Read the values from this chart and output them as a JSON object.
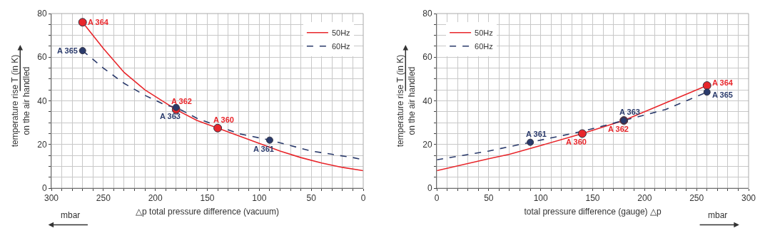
{
  "chart_data": [
    {
      "type": "line",
      "xlabel": "△p total pressure difference (vacuum)",
      "ylabel": "temperature rise T (in K)\non the air handled",
      "xlim": [
        300,
        0
      ],
      "xticks": [
        300,
        {
          "value": 290,
          "label": null
        },
        {
          "value": 280,
          "label": null
        },
        {
          "value": 270,
          "label": null
        },
        {
          "value": 260,
          "label": null
        },
        250,
        {
          "value": 240,
          "label": null
        },
        {
          "value": 230,
          "label": null
        },
        {
          "value": 220,
          "label": null
        },
        {
          "value": 210,
          "label": null
        },
        200,
        {
          "value": 190,
          "label": null
        },
        {
          "value": 180,
          "label": null
        },
        {
          "value": 170,
          "label": null
        },
        {
          "value": 160,
          "label": null
        },
        150,
        {
          "value": 140,
          "label": null
        },
        {
          "value": 130,
          "label": null
        },
        {
          "value": 120,
          "label": null
        },
        {
          "value": 110,
          "label": null
        },
        100,
        {
          "value": 90,
          "label": null
        },
        {
          "value": 80,
          "label": null
        },
        {
          "value": 70,
          "label": null
        },
        {
          "value": 60,
          "label": null
        },
        50,
        {
          "value": 40,
          "label": null
        },
        {
          "value": 30,
          "label": null
        },
        {
          "value": 20,
          "label": null
        },
        {
          "value": 10,
          "label": null
        },
        0
      ],
      "ylim": [
        0,
        80
      ],
      "yticks": [
        0,
        {
          "value": 5,
          "label": null
        },
        {
          "value": 10,
          "label": null
        },
        {
          "value": 15,
          "label": null
        },
        20,
        {
          "value": 25,
          "label": null
        },
        {
          "value": 30,
          "label": null
        },
        {
          "value": 35,
          "label": null
        },
        40,
        {
          "value": 45,
          "label": null
        },
        {
          "value": 50,
          "label": null
        },
        {
          "value": 55,
          "label": null
        },
        60,
        {
          "value": 65,
          "label": null
        },
        {
          "value": 70,
          "label": null
        },
        {
          "value": 75,
          "label": null
        },
        80
      ],
      "grid": true,
      "legend": "top right",
      "series": [
        {
          "name": "50Hz",
          "color": "#e8262b",
          "line_style": "solid",
          "marker": "none",
          "x": [
            270,
            250,
            230,
            210,
            190,
            180,
            160,
            140,
            120,
            100,
            80,
            60,
            40,
            20,
            0
          ],
          "values": [
            76,
            64,
            53,
            45,
            39,
            36,
            31,
            27.5,
            24,
            20.5,
            17,
            14,
            11.5,
            9.5,
            8
          ]
        },
        {
          "name": "60Hz",
          "color": "#2a3a6b",
          "line_style": "dashed",
          "marker": "none",
          "x": [
            270,
            250,
            230,
            210,
            190,
            180,
            160,
            140,
            120,
            90,
            70,
            50,
            30,
            10,
            0
          ],
          "values": [
            63,
            55,
            48,
            42.5,
            38,
            37,
            32,
            28.5,
            25,
            22,
            19.5,
            17,
            15.5,
            14,
            13
          ]
        },
        {
          "type": "scatter",
          "color": "#e8262b",
          "marker": "circle",
          "x": [
            270,
            180,
            140
          ],
          "values": [
            76,
            36,
            27.5
          ]
        },
        {
          "type": "scatter",
          "color": "#2a3a6b",
          "marker": "circle",
          "x": [
            270,
            180,
            90
          ],
          "values": [
            63,
            37,
            22
          ]
        }
      ],
      "annotations": [
        {
          "text": "A 364",
          "x": 270,
          "y": 76
        },
        {
          "text": "A 362",
          "x": 180,
          "y": 36
        },
        {
          "text": "A 360",
          "x": 140,
          "y": 27.5
        },
        {
          "text": "A 365",
          "x": 270,
          "y": 63
        },
        {
          "text": "A 363",
          "x": 180,
          "y": 37
        },
        {
          "text": "A 361",
          "x": 90,
          "y": 22
        },
        "mbar"
      ]
    },
    {
      "type": "line",
      "xlabel": "total pressure difference (gauge) △p",
      "ylabel": "temperature rise T (in K)\non the air handled",
      "xlim": [
        0,
        300
      ],
      "xticks": [
        0,
        {
          "value": 10,
          "label": null
        },
        {
          "value": 20,
          "label": null
        },
        {
          "value": 30,
          "label": null
        },
        {
          "value": 40,
          "label": null
        },
        50,
        {
          "value": 60,
          "label": null
        },
        {
          "value": 70,
          "label": null
        },
        {
          "value": 80,
          "label": null
        },
        {
          "value": 90,
          "label": null
        },
        100,
        {
          "value": 110,
          "label": null
        },
        {
          "value": 120,
          "label": null
        },
        {
          "value": 130,
          "label": null
        },
        {
          "value": 140,
          "label": null
        },
        150,
        {
          "value": 160,
          "label": null
        },
        {
          "value": 170,
          "label": null
        },
        {
          "value": 180,
          "label": null
        },
        {
          "value": 190,
          "label": null
        },
        200,
        {
          "value": 210,
          "label": null
        },
        {
          "value": 220,
          "label": null
        },
        {
          "value": 230,
          "label": null
        },
        {
          "value": 240,
          "label": null
        },
        250,
        {
          "value": 260,
          "label": null
        },
        {
          "value": 270,
          "label": null
        },
        {
          "value": 280,
          "label": null
        },
        {
          "value": 290,
          "label": null
        },
        300
      ],
      "ylim": [
        0,
        80
      ],
      "yticks": [
        0,
        {
          "value": 5,
          "label": null
        },
        {
          "value": 10,
          "label": null
        },
        {
          "value": 15,
          "label": null
        },
        20,
        {
          "value": 25,
          "label": null
        },
        {
          "value": 30,
          "label": null
        },
        {
          "value": 35,
          "label": null
        },
        40,
        {
          "value": 45,
          "label": null
        },
        {
          "value": 50,
          "label": null
        },
        {
          "value": 55,
          "label": null
        },
        60,
        {
          "value": 65,
          "label": null
        },
        {
          "value": 70,
          "label": null
        },
        {
          "value": 75,
          "label": null
        },
        80
      ],
      "grid": true,
      "legend": "top left",
      "series": [
        {
          "name": "50Hz",
          "color": "#e8262b",
          "line_style": "solid",
          "marker": "none",
          "x": [
            0,
            50,
            70,
            100,
            140,
            180,
            220,
            260
          ],
          "values": [
            8,
            13.5,
            15.5,
            19.5,
            25,
            31,
            39,
            47
          ]
        },
        {
          "name": "60Hz",
          "color": "#2a3a6b",
          "line_style": "dashed",
          "marker": "none",
          "x": [
            0,
            50,
            90,
            140,
            180,
            220,
            260
          ],
          "values": [
            13,
            17,
            21,
            26,
            31,
            36,
            44
          ]
        },
        {
          "type": "scatter",
          "color": "#e8262b",
          "marker": "circle",
          "x": [
            140,
            180,
            260
          ],
          "values": [
            25,
            31,
            47
          ]
        },
        {
          "type": "scatter",
          "color": "#2a3a6b",
          "marker": "circle",
          "x": [
            90,
            180,
            260
          ],
          "values": [
            21,
            31,
            44
          ]
        }
      ],
      "annotations": [
        {
          "text": "A 360",
          "x": 140,
          "y": 25
        },
        {
          "text": "A 362",
          "x": 180,
          "y": 31
        },
        {
          "text": "A 364",
          "x": 260,
          "y": 47
        },
        {
          "text": "A 361",
          "x": 90,
          "y": 21
        },
        {
          "text": "A 363",
          "x": 180,
          "y": 31
        },
        {
          "text": "A 365",
          "x": 260,
          "y": 44
        },
        "mbar"
      ]
    }
  ]
}
